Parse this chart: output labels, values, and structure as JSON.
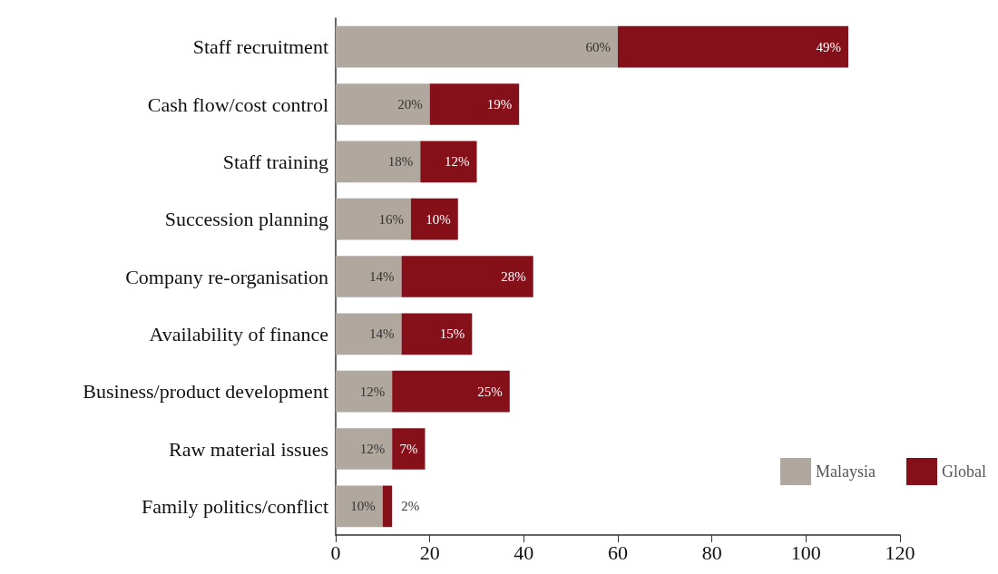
{
  "chart_data": {
    "type": "bar",
    "orientation": "horizontal",
    "stacked": true,
    "categories": [
      "Staff recruitment",
      "Cash flow/cost control",
      "Staff training",
      "Succession planning",
      "Company re-organisation",
      "Availability of finance",
      "Business/product development",
      "Raw material issues",
      "Family politics/conflict"
    ],
    "series": [
      {
        "name": "Malaysia",
        "color": "#b0a89e",
        "values": [
          60,
          20,
          18,
          16,
          14,
          14,
          12,
          12,
          10
        ],
        "value_labels": [
          "60%",
          "20%",
          "18%",
          "16%",
          "14%",
          "14%",
          "12%",
          "12%",
          "10%"
        ]
      },
      {
        "name": "Global",
        "color": "#85101a",
        "values": [
          49,
          19,
          12,
          10,
          28,
          15,
          25,
          7,
          2
        ],
        "value_labels": [
          "49%",
          "19%",
          "12%",
          "10%",
          "28%",
          "15%",
          "25%",
          "7%",
          "2%"
        ]
      }
    ],
    "xlim": [
      0,
      120
    ],
    "xticks": [
      0,
      20,
      40,
      60,
      80,
      100,
      120
    ],
    "grid": false,
    "legend": "bottom right"
  }
}
